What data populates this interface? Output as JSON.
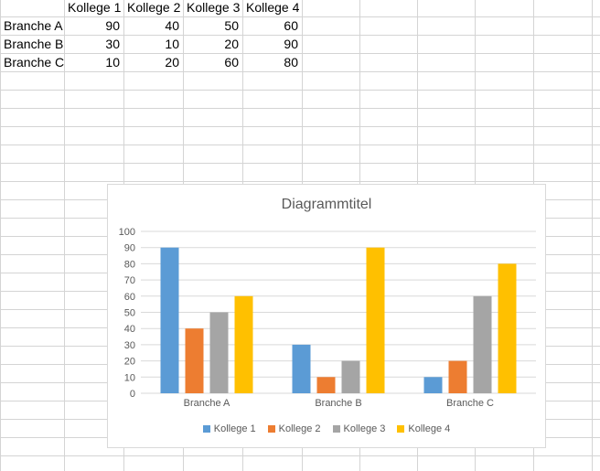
{
  "sheet": {
    "table": {
      "corner_label": "",
      "column_headers": [
        "Kollege 1",
        "Kollege 2",
        "Kollege 3",
        "Kollege 4"
      ],
      "rows": [
        {
          "label": "Branche A",
          "values": [
            90,
            40,
            50,
            60
          ]
        },
        {
          "label": "Branche B",
          "values": [
            30,
            10,
            20,
            90
          ]
        },
        {
          "label": "Branche C",
          "values": [
            10,
            20,
            60,
            80
          ]
        }
      ]
    }
  },
  "chart_data": {
    "type": "bar",
    "title": "Diagrammtitel",
    "categories": [
      "Branche A",
      "Branche B",
      "Branche C"
    ],
    "series": [
      {
        "name": "Kollege 1",
        "color": "#5B9BD5",
        "values": [
          90,
          30,
          10
        ]
      },
      {
        "name": "Kollege 2",
        "color": "#ED7D31",
        "values": [
          40,
          10,
          20
        ]
      },
      {
        "name": "Kollege 3",
        "color": "#A5A5A5",
        "values": [
          50,
          20,
          60
        ]
      },
      {
        "name": "Kollege 4",
        "color": "#FFC000",
        "values": [
          60,
          90,
          80
        ]
      }
    ],
    "xlabel": "",
    "ylabel": "",
    "ylim": [
      0,
      100
    ],
    "ytick_step": 10,
    "grid": true,
    "legend_position": "bottom",
    "title_color": "#595959",
    "axis_text_color": "#595959",
    "gridline_color": "#D9D9D9"
  },
  "colors": {
    "spreadsheet_gridline": "#D4D4D4",
    "chart_border": "#D9D9D9",
    "cell_text": "#000000"
  }
}
